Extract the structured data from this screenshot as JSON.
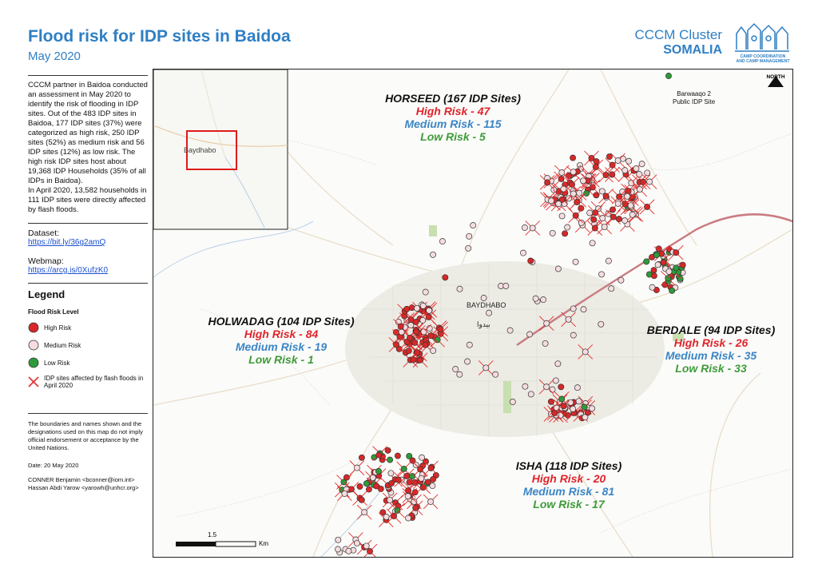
{
  "header": {
    "title": "Flood risk for IDP sites in Baidoa",
    "subtitle": "May 2020",
    "org_line1": "CCCM Cluster",
    "org_line2": "SOMALIA",
    "logo_text": "CAMP COORDINATION AND CAMP MANAGEMENT"
  },
  "sidebar": {
    "intro": "CCCM partner in Baidoa conducted an assessment in May 2020 to identify the risk of flooding in IDP sites. Out of the 483 IDP sites in Baidoa, 177 IDP sites (37%) were categorized as high risk, 250 IDP sites (52%) as medium risk and 56 IDP sites (12%) as low risk. The high risk IDP sites host about 19,368 IDP Households (35% of all IDPs in Baidoa).",
    "intro2": "In April 2020, 13,582 households in 111 IDP sites were directly affected by flash floods.",
    "dataset_label": "Dataset:",
    "dataset_link": "https://bit.ly/36g2amQ",
    "webmap_label": "Webmap:",
    "webmap_link": "https://arcg.is/0XufzK0",
    "legend_title": "Legend",
    "legend_sub": "Flood Risk Level",
    "legend_high": "High Risk",
    "legend_medium": "Medium Risk",
    "legend_low": "Low Risk",
    "legend_flash": "IDP sites affected by flash floods in April 2020",
    "disclaimer": "The boundaries and names shown and the designations used on this map do not imply official endorsement or acceptance by the United Nations.",
    "date": "Date: 20 May 2020",
    "credit1": "CONNER Benjamin <bconner@iom.int>",
    "credit2": "Hassan Abdi Yarow <yarowh@unhcr.org>"
  },
  "colors": {
    "high": "#d62828",
    "medium": "#f4dcdf",
    "low": "#2f9a3a",
    "flash": "#e52e2e",
    "accent": "#2f7fc4"
  },
  "map": {
    "inset_label": "Baydhabo",
    "city_label": "BAYDHABO",
    "city_label_ar": "بيدوا",
    "north_label": "NORTH",
    "barwaaqo_line1": "Barwaaqo 2",
    "barwaaqo_line2": "Public IDP Site",
    "scale_mid": "1.5",
    "scale_unit": "Km",
    "zones": [
      {
        "id": "horseed",
        "name": "HORSEED (167 IDP Sites)",
        "high": "High Risk - 47",
        "medium": "Medium Risk - 115",
        "low": "Low Risk - 5"
      },
      {
        "id": "holwadag",
        "name": "HOLWADAG (104 IDP Sites)",
        "high": "High Risk - 84",
        "medium": "Medium Risk - 19",
        "low": "Low Risk - 1"
      },
      {
        "id": "berdale",
        "name": "BERDALE (94 IDP Sites)",
        "high": "High Risk - 26",
        "medium": "Medium Risk - 35",
        "low": "Low Risk - 33"
      },
      {
        "id": "isha",
        "name": "ISHA (118 IDP Sites)",
        "high": "High Risk - 20",
        "medium": "Medium Risk - 81",
        "low": "Low Risk - 17"
      }
    ]
  }
}
